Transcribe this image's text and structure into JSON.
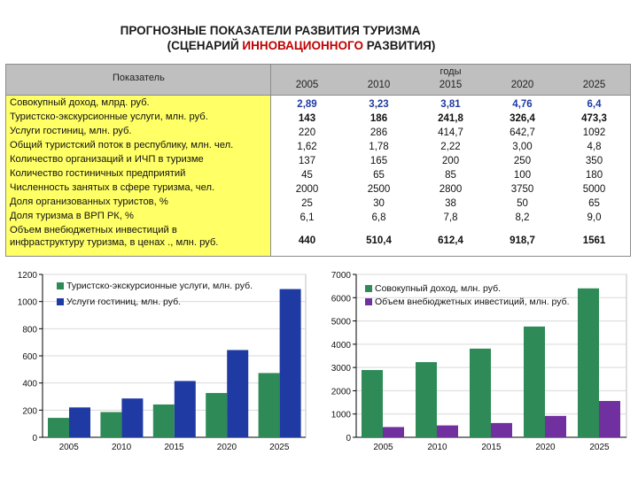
{
  "title": {
    "line1": "ПРОГНОЗНЫЕ ПОКАЗАТЕЛИ РАЗВИТИЯ ТУРИЗМА",
    "line2_before": "(СЦЕНАРИЙ ",
    "line2_highlight": "ИННОВАЦИОННОГО",
    "line2_after": " РАЗВИТИЯ)"
  },
  "colors": {
    "header_bg": "#bfbfbf",
    "label_bg": "#ffff66",
    "green": "#2e8b57",
    "purple": "#7030a0",
    "blue_text": "#1f3aa3"
  },
  "table": {
    "header_label": "Показатель",
    "years_label": "годы",
    "years": [
      "2005",
      "2010",
      "2015",
      "2020",
      "2025"
    ],
    "rows": [
      {
        "label": "Совокупный доход, млрд. руб.",
        "values": [
          "2,89",
          "3,23",
          "3,81",
          "4,76",
          "6,4"
        ]
      },
      {
        "label": "Туристско-экскурсионные услуги, млн. руб.",
        "values": [
          "143",
          "186",
          "241,8",
          "326,4",
          "473,3"
        ]
      },
      {
        "label": "Услуги гостиниц, млн. руб.",
        "values": [
          "220",
          "286",
          "414,7",
          "642,7",
          "1092"
        ]
      },
      {
        "label": "Общий туристский поток в республику, млн. чел.",
        "values": [
          "1,62",
          "1,78",
          "2,22",
          "3,00",
          "4,8"
        ]
      },
      {
        "label": "Количество организаций и ИЧП в туризме",
        "values": [
          "137",
          "165",
          "200",
          "250",
          "350"
        ]
      },
      {
        "label": "Количество гостиничных предприятий",
        "values": [
          "45",
          "65",
          "85",
          "100",
          "180"
        ]
      },
      {
        "label": "Численность занятых в сфере туризма, чел.",
        "values": [
          "2000",
          "2500",
          "2800",
          "3750",
          "5000"
        ]
      },
      {
        "label": "Доля организованных туристов, %",
        "values": [
          "25",
          "30",
          "38",
          "50",
          "65"
        ]
      },
      {
        "label": "Доля туризма в ВРП РК, %",
        "values": [
          "6,1",
          "6,8",
          "7,8",
          "8,2",
          "9,0"
        ]
      },
      {
        "label_line1": "Объем внебюджетных инвестиций в",
        "label_line2": "инфраструктуру туризма, в ценах ., млн. руб.",
        "values": [
          "440",
          "510,4",
          "612,4",
          "918,7",
          "1561"
        ]
      }
    ]
  },
  "chart_data": [
    {
      "type": "bar",
      "categories": [
        "2005",
        "2010",
        "2015",
        "2020",
        "2025"
      ],
      "series": [
        {
          "name": "Туристско-экскурсионные услуги, млн. руб.",
          "color": "#2e8b57",
          "values": [
            143,
            186,
            241.8,
            326.4,
            473.3
          ]
        },
        {
          "name": "Услуги гостиниц, млн. руб.",
          "color": "#1f3aa3",
          "values": [
            220,
            286,
            414.7,
            642.7,
            1092
          ]
        }
      ],
      "ylim": [
        0,
        1200
      ],
      "yticks": [
        0,
        200,
        400,
        600,
        800,
        1000,
        1200
      ],
      "ytick_labels": [
        "0",
        "200",
        "400",
        "600",
        "800",
        "1000",
        "1200"
      ],
      "legend_position": "top-left"
    },
    {
      "type": "bar",
      "categories": [
        "2005",
        "2010",
        "2015",
        "2020",
        "2025"
      ],
      "series": [
        {
          "name": "Совокупный доход, млн. руб.",
          "color": "#2e8b57",
          "values": [
            2890,
            3230,
            3810,
            4760,
            6400
          ]
        },
        {
          "name": "Объем внебюджетных инвестиций, млн. руб.",
          "color": "#7030a0",
          "values": [
            440,
            510.4,
            612.4,
            918.7,
            1561
          ]
        }
      ],
      "ylim": [
        0,
        7000
      ],
      "yticks": [
        0,
        1000,
        2000,
        3000,
        4000,
        5000,
        6000,
        7000
      ],
      "ytick_labels": [
        "0",
        "1000",
        "2000",
        "3000",
        "4000",
        "5000",
        "6000",
        "7000"
      ],
      "legend_position": "top-left"
    }
  ]
}
